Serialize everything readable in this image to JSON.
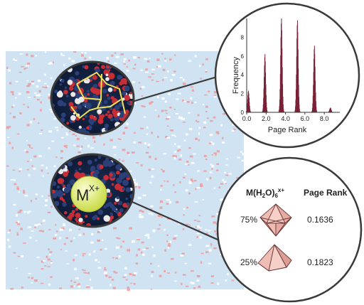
{
  "ion_label": "M",
  "ion_charge": "X+",
  "histogram": {
    "ylabel": "Frequency",
    "xlabel": "Page Rank",
    "x_ticks": [
      "0.0",
      "2.0",
      "4.0",
      "6.0",
      "8.0"
    ],
    "y_ticks": [
      "0",
      "2",
      "4",
      "6",
      "8"
    ],
    "bar_color": "#7a2238"
  },
  "chart_data": {
    "type": "bar",
    "xlabel": "Page Rank",
    "ylabel": "Frequency",
    "xlim": [
      0,
      9.6
    ],
    "ylim": [
      0,
      10
    ],
    "peaks": [
      {
        "center": 0.15,
        "height": 2.3
      },
      {
        "center": 1.85,
        "height": 6.2
      },
      {
        "center": 3.55,
        "height": 10.0
      },
      {
        "center": 5.2,
        "height": 9.8
      },
      {
        "center": 6.95,
        "height": 7.1
      },
      {
        "center": 8.6,
        "height": 0.5
      }
    ]
  },
  "table": {
    "header_formula_main": "M(H",
    "header_formula_sub2": "2",
    "header_formula_mid": "O)",
    "header_formula_sub6": "6",
    "header_formula_charge": "x+",
    "header_rank": "Page Rank",
    "rows": [
      {
        "percent": "75%",
        "value": "0.1636",
        "shape": "octahedron"
      },
      {
        "percent": "25%",
        "value": "0.1823",
        "shape": "square-pyramid"
      }
    ]
  },
  "colors": {
    "water_bg": "#cfe3f3",
    "oxygen": "#d9363e",
    "hydrogen": "#f2f2f2",
    "network_edge": "#f2e05a",
    "ion": "#e6f27a",
    "poly_fill": "#f3c7c0"
  }
}
